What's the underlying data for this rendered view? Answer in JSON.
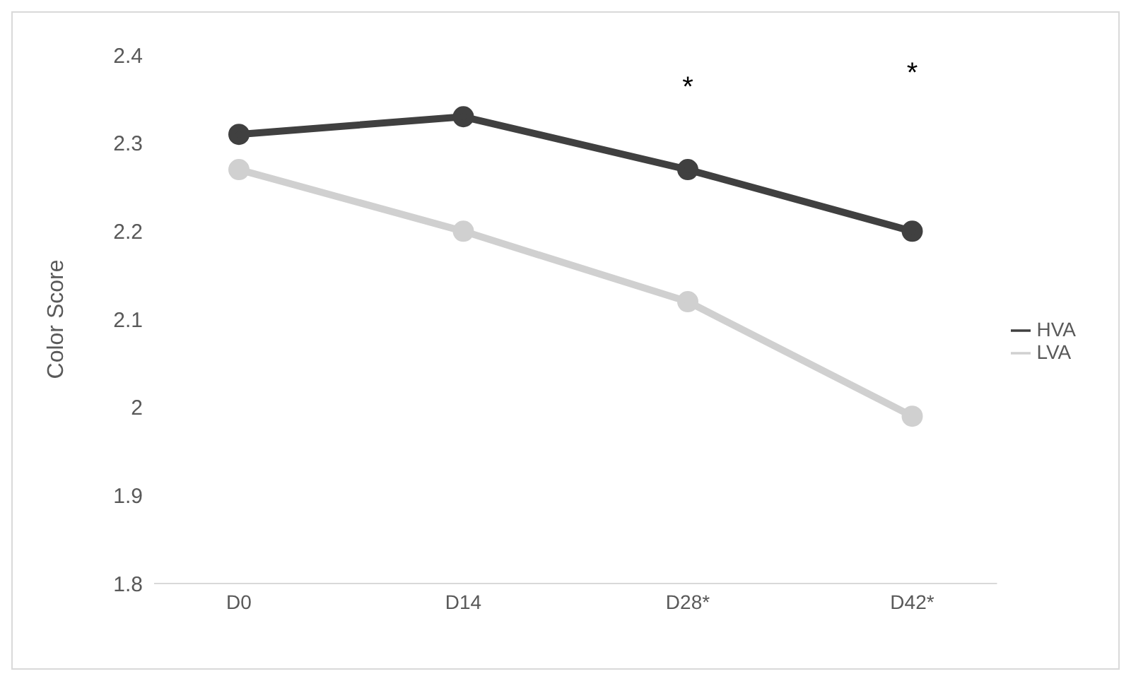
{
  "chart_data": {
    "type": "line",
    "ylabel": "Color Score",
    "categories": [
      "D0",
      "D14",
      "D28*",
      "D42*"
    ],
    "series": [
      {
        "name": "HVA",
        "color": "#404040",
        "values": [
          2.31,
          2.33,
          2.27,
          2.2
        ]
      },
      {
        "name": "LVA",
        "color": "#d0d0d0",
        "values": [
          2.27,
          2.2,
          2.12,
          1.99
        ]
      }
    ],
    "ylim": [
      1.8,
      2.4
    ],
    "yticks": [
      1.8,
      1.9,
      2,
      2.1,
      2.2,
      2.3,
      2.4
    ],
    "grid": false,
    "legend": "right",
    "marker": "circle",
    "line_style": "solid",
    "annotations": [
      "*",
      "*"
    ]
  }
}
